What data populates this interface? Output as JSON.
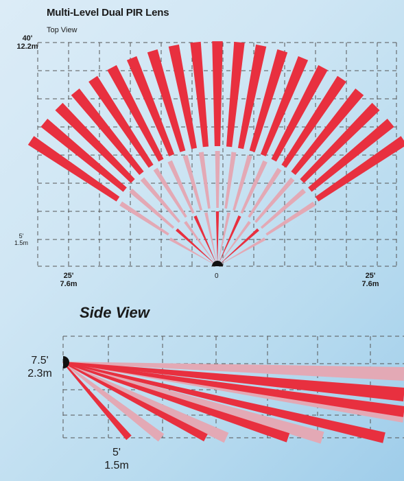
{
  "top_view": {
    "title": "Multi-Level Dual PIR Lens",
    "subtitle": "Top View",
    "range_label": {
      "feet": "40'",
      "meters": "12.2m"
    },
    "near_label": {
      "feet": "5'",
      "meters": "1.5m"
    },
    "left_label": {
      "feet": "25'",
      "meters": "7.6m"
    },
    "right_label": {
      "feet": "25'",
      "meters": "7.6m"
    },
    "origin_label": "0"
  },
  "side_view": {
    "title": "Side View",
    "height_label": {
      "feet": "7.5'",
      "meters": "2.3m"
    },
    "distance_label": {
      "feet": "5'",
      "meters": "1.5m"
    }
  },
  "colors": {
    "beam_red": "#e8303f",
    "beam_pink": "#e3a9b5",
    "grid": "#555555",
    "sensor": "#111111"
  }
}
